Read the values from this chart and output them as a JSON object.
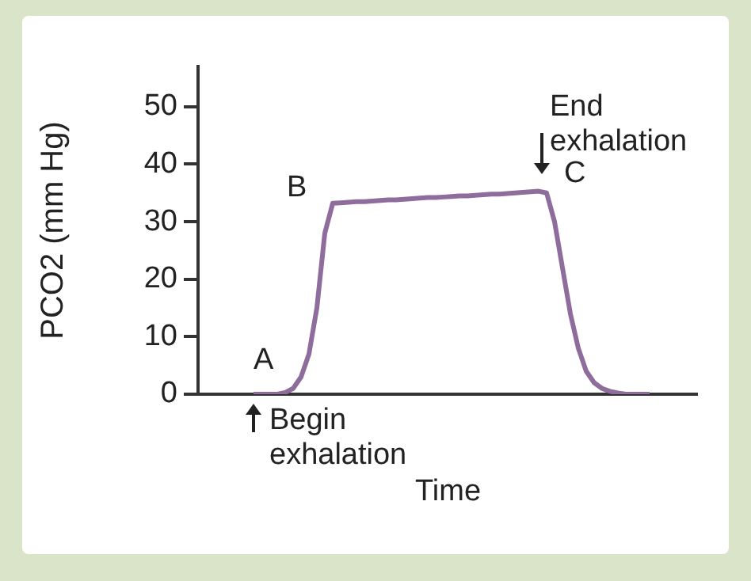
{
  "chart_data": {
    "type": "line",
    "xlabel": "Time",
    "ylabel": "PCO2 (mm Hg)",
    "categories": [
      null,
      null,
      null,
      null,
      null,
      null,
      null,
      null,
      null,
      null,
      null,
      null,
      null,
      null,
      null,
      null,
      null,
      null,
      null,
      null,
      null,
      null,
      null,
      null,
      null,
      null,
      null,
      null,
      null,
      null,
      null,
      null,
      null,
      null,
      null,
      null,
      null,
      null,
      null,
      null,
      null,
      null,
      null,
      null,
      null,
      null,
      null,
      null,
      null,
      null,
      null
    ],
    "series": [
      {
        "color": "#8e6c9c",
        "values": [
          0,
          0,
          0,
          0,
          0.3,
          1,
          3,
          7,
          15,
          28,
          33.2,
          33.3,
          33.4,
          33.5,
          33.5,
          33.6,
          33.7,
          33.8,
          33.8,
          33.9,
          34.0,
          34.1,
          34.2,
          34.2,
          34.3,
          34.4,
          34.5,
          34.5,
          34.6,
          34.7,
          34.8,
          34.8,
          34.9,
          35.0,
          35.1,
          35.2,
          35.3,
          35,
          30,
          22,
          14,
          8,
          4,
          2,
          1,
          0.5,
          0.2,
          0,
          0,
          0,
          0
        ]
      }
    ],
    "ylim": [
      0,
      57
    ],
    "yticks": [
      0,
      10,
      20,
      30,
      40,
      50
    ],
    "grid": false,
    "legend": false,
    "tick_labels": "y",
    "marker": "none",
    "line_style": "solid",
    "annotations": [
      "A",
      "B",
      "C",
      "End exhalation",
      "Begin exhalation"
    ]
  }
}
